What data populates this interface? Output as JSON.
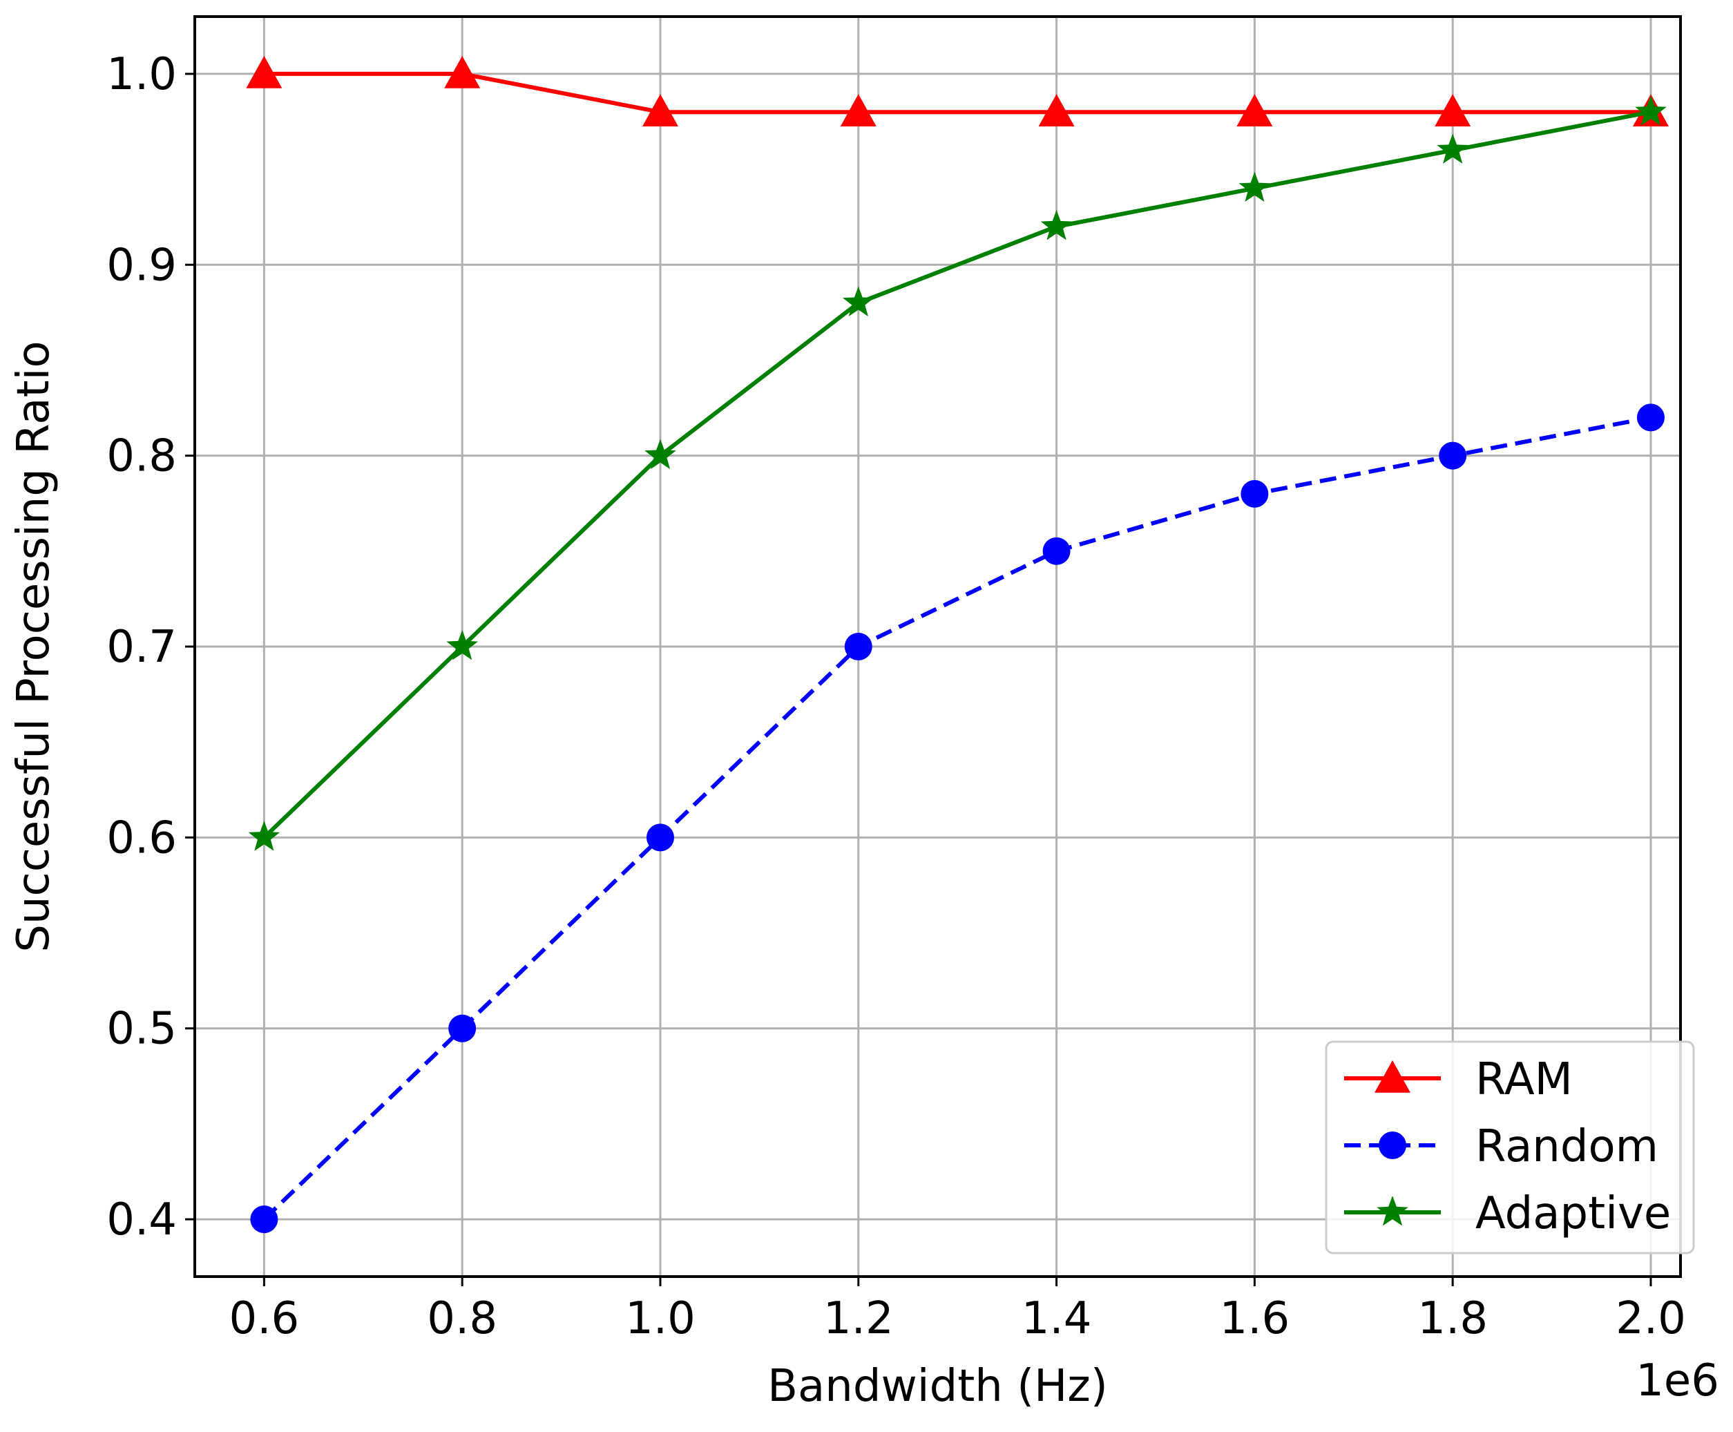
{
  "chart_data": {
    "type": "line",
    "title": "",
    "xlabel": "Bandwidth (Hz)",
    "ylabel": "Successful Processing Ratio",
    "x_offset_label": "1e6",
    "x": [
      0.6,
      0.8,
      1.0,
      1.2,
      1.4,
      1.6,
      1.8,
      2.0
    ],
    "x_ticks": [
      "0.6",
      "0.8",
      "1.0",
      "1.2",
      "1.4",
      "1.6",
      "1.8",
      "2.0"
    ],
    "y_ticks": [
      "0.4",
      "0.5",
      "0.6",
      "0.7",
      "0.8",
      "0.9",
      "1.0"
    ],
    "xlim": [
      0.53,
      2.03
    ],
    "ylim": [
      0.37,
      1.03
    ],
    "grid": true,
    "legend_position": "lower-right",
    "series": [
      {
        "name": "RAM",
        "values": [
          1.0,
          1.0,
          0.98,
          0.98,
          0.98,
          0.98,
          0.98,
          0.98
        ],
        "color": "#ff0000",
        "marker": "triangle",
        "linestyle": "solid"
      },
      {
        "name": "Random",
        "values": [
          0.4,
          0.5,
          0.6,
          0.7,
          0.75,
          0.78,
          0.8,
          0.82
        ],
        "color": "#0000ff",
        "marker": "circle",
        "linestyle": "dashed"
      },
      {
        "name": "Adaptive",
        "values": [
          0.6,
          0.7,
          0.8,
          0.88,
          0.92,
          0.94,
          0.96,
          0.98
        ],
        "color": "#008000",
        "marker": "star",
        "linestyle": "solid"
      }
    ]
  }
}
